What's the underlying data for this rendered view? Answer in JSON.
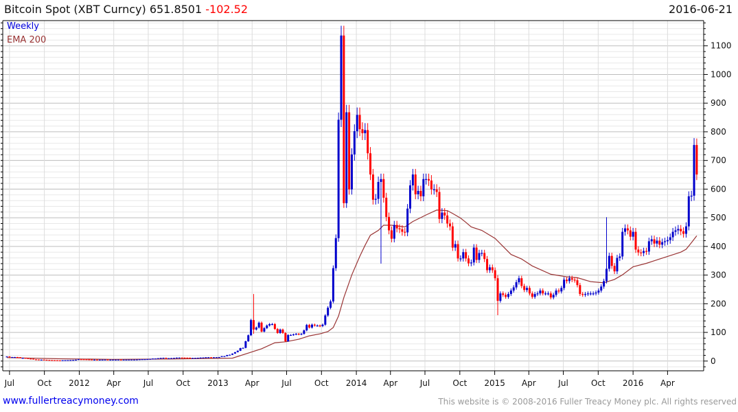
{
  "header": {
    "title": "Bitcoin Spot (XBT Curncy)",
    "last": "651.8501",
    "change": "-102.52",
    "date": "2016-06-21"
  },
  "legend": {
    "interval": "Weekly",
    "indicator": "EMA 200"
  },
  "footer": {
    "site": "www.fullertreacymoney.com",
    "copyright": "This website is © 2008-2016 Fuller Treacy Money plc. All rights reserved"
  },
  "colors": {
    "up": "#0000cc",
    "down": "#ff0000",
    "ema": "#993333"
  },
  "chart_data": {
    "type": "candlestick",
    "title": "Bitcoin Spot (XBT Curncy)",
    "interval": "weekly",
    "x_start": "2011-06-24",
    "ylim": [
      -34,
      1188
    ],
    "y_ticks": [
      0,
      100,
      200,
      300,
      400,
      500,
      600,
      700,
      800,
      900,
      1000,
      1100
    ],
    "x_ticks": [
      {
        "label": "Jul",
        "date": "2011-07-01"
      },
      {
        "label": "Oct",
        "date": "2011-10-01"
      },
      {
        "label": "2012",
        "date": "2012-01-01"
      },
      {
        "label": "Apr",
        "date": "2012-04-01"
      },
      {
        "label": "Jul",
        "date": "2012-07-01"
      },
      {
        "label": "Oct",
        "date": "2012-10-01"
      },
      {
        "label": "2013",
        "date": "2013-01-01"
      },
      {
        "label": "Apr",
        "date": "2013-04-01"
      },
      {
        "label": "Jul",
        "date": "2013-07-01"
      },
      {
        "label": "Oct",
        "date": "2013-10-01"
      },
      {
        "label": "2014",
        "date": "2014-01-01"
      },
      {
        "label": "Apr",
        "date": "2014-04-01"
      },
      {
        "label": "Jul",
        "date": "2014-07-01"
      },
      {
        "label": "Oct",
        "date": "2014-10-01"
      },
      {
        "label": "2015",
        "date": "2015-01-01"
      },
      {
        "label": "Apr",
        "date": "2015-04-01"
      },
      {
        "label": "Jul",
        "date": "2015-07-01"
      },
      {
        "label": "Oct",
        "date": "2015-10-01"
      },
      {
        "label": "2016",
        "date": "2016-01-01"
      },
      {
        "label": "Apr",
        "date": "2016-04-01"
      }
    ],
    "first_open": 16,
    "closes": [
      16,
      14,
      14,
      14,
      13.5,
      11,
      11,
      10,
      8.5,
      8,
      6,
      5.5,
      5,
      5,
      4.5,
      4,
      3.5,
      3.2,
      3,
      2.5,
      2.3,
      2.8,
      3,
      3.2,
      3.5,
      4,
      4.7,
      6.5,
      6.4,
      6.2,
      5.8,
      5.5,
      4.8,
      5,
      4.9,
      4.9,
      5,
      5.2,
      4.8,
      4.9,
      5,
      5,
      5.1,
      5,
      5.1,
      5.1,
      5.2,
      5.3,
      5.3,
      5.6,
      6.2,
      6.6,
      6.7,
      7,
      7.5,
      8.8,
      8.9,
      10,
      11,
      11.5,
      10,
      10.2,
      10.5,
      11,
      12,
      12.3,
      12,
      11.8,
      11.7,
      10.8,
      10.9,
      11,
      11.5,
      12.2,
      12.5,
      13.3,
      13.5,
      13.4,
      13.5,
      13.6,
      14,
      17,
      17,
      21,
      22,
      26,
      31,
      36,
      45,
      46,
      69,
      90,
      143,
      110,
      117,
      134,
      103,
      115,
      124,
      129,
      129,
      112,
      98,
      110,
      98,
      69,
      91,
      91,
      93,
      95,
      93,
      95,
      107,
      126,
      117,
      127,
      124,
      124,
      122,
      127,
      159,
      186,
      208,
      324,
      429,
      842,
      1136,
      551,
      868,
      599,
      721,
      802,
      859,
      809,
      795,
      806,
      725,
      651,
      563,
      566,
      625,
      635,
      570,
      503,
      456,
      427,
      475,
      463,
      460,
      451,
      449,
      532,
      613,
      651,
      582,
      594,
      575,
      635,
      635,
      630,
      599,
      599,
      590,
      496,
      518,
      508,
      480,
      470,
      396,
      408,
      358,
      358,
      380,
      358,
      341,
      344,
      396,
      353,
      377,
      377,
      356,
      317,
      327,
      317,
      289,
      210,
      236,
      231,
      224,
      234,
      246,
      257,
      275,
      289,
      262,
      248,
      255,
      236,
      224,
      234,
      236,
      246,
      236,
      236,
      236,
      222,
      231,
      246,
      243,
      255,
      284,
      279,
      289,
      284,
      282,
      265,
      234,
      231,
      234,
      236,
      236,
      236,
      239,
      246,
      260,
      279,
      322,
      367,
      332,
      313,
      360,
      365,
      451,
      463,
      456,
      434,
      451,
      389,
      379,
      377,
      384,
      382,
      418,
      425,
      410,
      420,
      406,
      415,
      418,
      422,
      432,
      451,
      456,
      461,
      453,
      444,
      470,
      575,
      577,
      754,
      651
    ],
    "extremes": [
      [
        93,
        234,
        95
      ],
      [
        125,
        850,
        515
      ],
      [
        126,
        1140,
        830
      ],
      [
        127,
        1120,
        535
      ],
      [
        141,
        640,
        340
      ],
      [
        185,
        300,
        160
      ],
      [
        226,
        502,
        280
      ],
      [
        259,
        778,
        640
      ],
      [
        260,
        770,
        633
      ]
    ],
    "ema": {
      "name": "EMA 200",
      "points": [
        [
          0,
          12
        ],
        [
          20,
          8
        ],
        [
          40,
          6
        ],
        [
          60,
          7
        ],
        [
          75,
          9
        ],
        [
          85,
          10
        ],
        [
          92,
          31
        ],
        [
          96,
          43
        ],
        [
          101,
          64
        ],
        [
          105,
          67
        ],
        [
          110,
          76
        ],
        [
          114,
          88
        ],
        [
          118,
          95
        ],
        [
          121,
          103
        ],
        [
          123,
          117
        ],
        [
          125,
          157
        ],
        [
          127,
          222
        ],
        [
          130,
          301
        ],
        [
          133,
          365
        ],
        [
          135,
          404
        ],
        [
          137,
          439
        ],
        [
          140,
          456
        ],
        [
          142,
          474
        ],
        [
          145,
          474
        ],
        [
          150,
          468
        ],
        [
          153,
          487
        ],
        [
          158,
          510
        ],
        [
          162,
          527
        ],
        [
          166,
          525
        ],
        [
          168,
          515
        ],
        [
          171,
          499
        ],
        [
          173,
          484
        ],
        [
          175,
          468
        ],
        [
          179,
          456
        ],
        [
          184,
          428
        ],
        [
          190,
          372
        ],
        [
          194,
          356
        ],
        [
          198,
          332
        ],
        [
          205,
          303
        ],
        [
          211,
          294
        ],
        [
          215,
          291
        ],
        [
          220,
          277
        ],
        [
          225,
          273
        ],
        [
          229,
          285
        ],
        [
          232,
          301
        ],
        [
          236,
          329
        ],
        [
          241,
          341
        ],
        [
          246,
          356
        ],
        [
          250,
          368
        ],
        [
          254,
          380
        ],
        [
          256,
          390
        ],
        [
          258,
          413
        ],
        [
          260,
          437
        ]
      ]
    }
  }
}
